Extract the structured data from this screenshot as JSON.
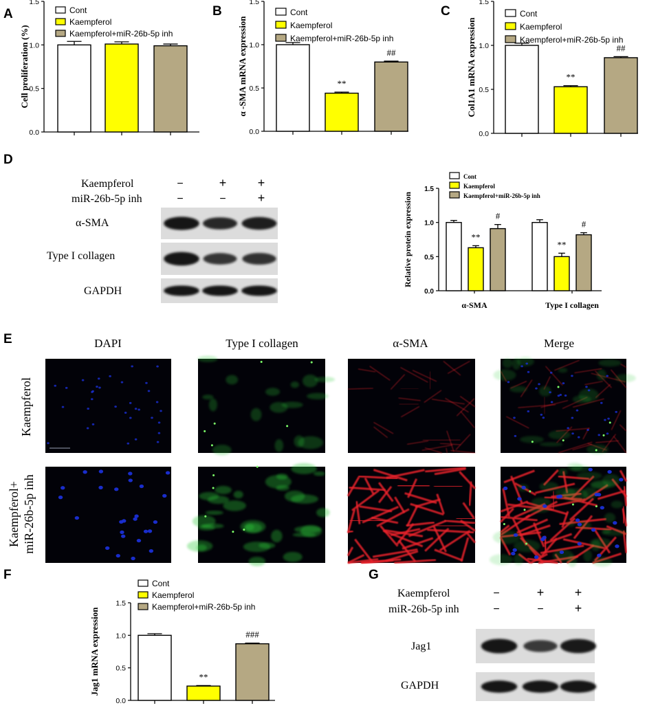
{
  "colors": {
    "cont": "#ffffff",
    "kaempferol": "#ffff00",
    "inh": "#b5a883",
    "blot_bg": "#dcdcdc",
    "band": "#141414",
    "dapi": "#1a2fd6",
    "collagen": "#2ecc3a",
    "sma": "#e8202a"
  },
  "panels": {
    "A": "A",
    "B": "B",
    "C": "C",
    "D": "D",
    "E": "E",
    "F": "F",
    "G": "G"
  },
  "legend": {
    "cont": "Cont",
    "kaempferol": "Kaempferol",
    "inh": "Kaempferol+miR-26b-5p inh"
  },
  "stars2": "**",
  "hash1": "#",
  "hash2": "##",
  "hash3": "###",
  "chart_data": [
    {
      "panel": "A",
      "type": "bar",
      "ylabel": "Cell proliferation (%)",
      "ylim": [
        0,
        1.5
      ],
      "yticks": [
        "0.0",
        "0.5",
        "1.0",
        "1.5"
      ],
      "series": [
        {
          "name": "Cont",
          "values": [
            1.0
          ]
        },
        {
          "name": "Kaempferol",
          "values": [
            1.01
          ]
        },
        {
          "name": "Kaempferol+miR-26b-5p inh",
          "values": [
            0.99
          ]
        }
      ],
      "errors": [
        0.04,
        0.025,
        0.02
      ],
      "annotations": [
        "",
        "",
        ""
      ]
    },
    {
      "panel": "B",
      "type": "bar",
      "ylabel": "α -SMA mRNA expression",
      "ylim": [
        0,
        1.5
      ],
      "yticks": [
        "0.0",
        "0.5",
        "1.0",
        "1.5"
      ],
      "series": [
        {
          "name": "Cont",
          "values": [
            1.0
          ]
        },
        {
          "name": "Kaempferol",
          "values": [
            0.44
          ]
        },
        {
          "name": "Kaempferol+miR-26b-5p inh",
          "values": [
            0.8
          ]
        }
      ],
      "errors": [
        0.025,
        0.012,
        0.01
      ],
      "annotations": [
        "",
        "**",
        "##"
      ]
    },
    {
      "panel": "C",
      "type": "bar",
      "ylabel": "Col1A1 mRNA expression",
      "ylim": [
        0,
        1.5
      ],
      "yticks": [
        "0.0",
        "0.5",
        "1.0",
        "1.5"
      ],
      "series": [
        {
          "name": "Cont",
          "values": [
            1.0
          ]
        },
        {
          "name": "Kaempferol",
          "values": [
            0.53
          ]
        },
        {
          "name": "Kaempferol+miR-26b-5p inh",
          "values": [
            0.86
          ]
        }
      ],
      "errors": [
        0.025,
        0.012,
        0.012
      ],
      "annotations": [
        "",
        "**",
        "##"
      ]
    },
    {
      "panel": "D",
      "type": "bar",
      "ylabel": "Relative protein expression",
      "ylim": [
        0,
        1.5
      ],
      "yticks": [
        "0.0",
        "0.5",
        "1.0",
        "1.5"
      ],
      "categories": [
        "α-SMA",
        "Type  I collagen"
      ],
      "series": [
        {
          "name": "Cont",
          "values": [
            1.0,
            1.0
          ]
        },
        {
          "name": "Kaempferol",
          "values": [
            0.63,
            0.5
          ]
        },
        {
          "name": "Kaempferol+miR-26b-5p inh",
          "values": [
            0.91,
            0.82
          ]
        }
      ],
      "errors": [
        [
          0.03,
          0.04
        ],
        [
          0.03,
          0.05
        ],
        [
          0.06,
          0.03
        ]
      ],
      "annotations": [
        [
          "",
          "**",
          "#"
        ],
        [
          "",
          "**",
          "#"
        ]
      ]
    },
    {
      "panel": "F",
      "type": "bar",
      "ylabel": "Jag1 mRNA expression",
      "ylim": [
        0,
        1.5
      ],
      "yticks": [
        "0.0",
        "0.5",
        "1.0",
        "1.5"
      ],
      "series": [
        {
          "name": "Cont",
          "values": [
            1.0
          ]
        },
        {
          "name": "Kaempferol",
          "values": [
            0.22
          ]
        },
        {
          "name": "Kaempferol+miR-26b-5p inh",
          "values": [
            0.87
          ]
        }
      ],
      "errors": [
        0.025,
        0.008,
        0.01
      ],
      "annotations": [
        "",
        "**",
        "###"
      ]
    }
  ],
  "western_D": {
    "row1_label": "Kaempferol",
    "row1_signs": [
      "−",
      "+",
      "+"
    ],
    "row2_label": "miR-26b-5p inh",
    "row2_signs": [
      "−",
      "−",
      "+"
    ],
    "bands": [
      {
        "label": "α-SMA",
        "intensity": [
          1.0,
          0.8,
          0.9
        ]
      },
      {
        "label": "Type I collagen",
        "intensity": [
          1.0,
          0.65,
          0.7
        ]
      },
      {
        "label": "GAPDH",
        "intensity": [
          1.0,
          1.0,
          1.0
        ]
      }
    ]
  },
  "western_G": {
    "row1_label": "Kaempferol",
    "row1_signs": [
      "−",
      "+",
      "+"
    ],
    "row2_label": "miR-26b-5p inh",
    "row2_signs": [
      "−",
      "−",
      "+"
    ],
    "bands": [
      {
        "label": "Jag1",
        "intensity": [
          1.0,
          0.6,
          0.95
        ]
      },
      {
        "label": "GAPDH",
        "intensity": [
          1.0,
          1.0,
          1.0
        ]
      }
    ]
  },
  "microscopy": {
    "columns": [
      "DAPI",
      "Type I collagen",
      "α-SMA",
      "Merge"
    ],
    "rows": [
      "Kaempferol",
      "Kaempferol+\nmiR-26b-5p inh"
    ],
    "row2_line1": "Kaempferol+",
    "row2_line2": "miR-26b-5p inh"
  }
}
